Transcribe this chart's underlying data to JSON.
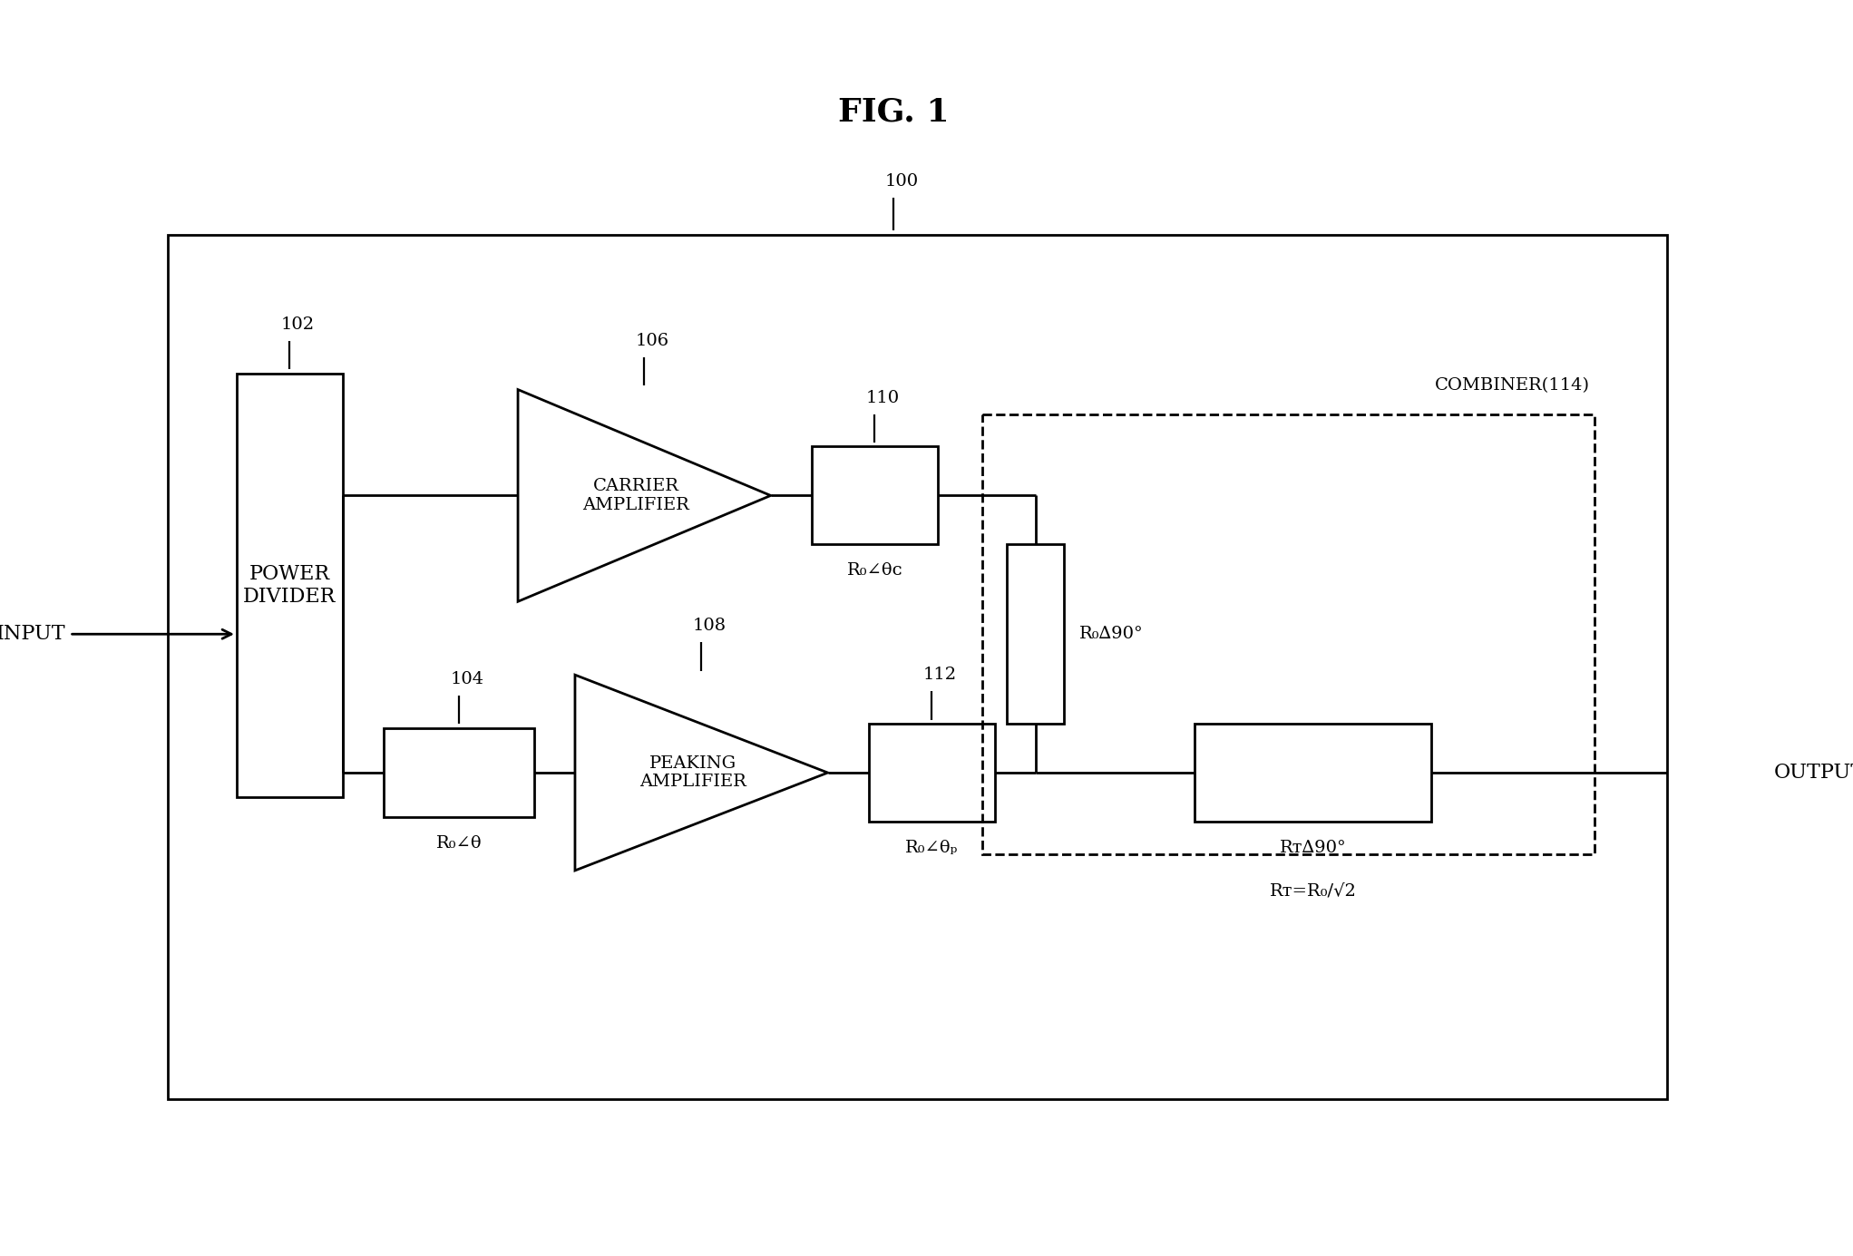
{
  "title": "FIG. 1",
  "title_fontsize": 26,
  "title_fontweight": "bold",
  "bg_color": "#ffffff",
  "line_color": "#000000",
  "linewidth": 2.0,
  "label_100": "100",
  "label_102": "102",
  "label_104": "104",
  "label_106": "106",
  "label_108": "108",
  "label_110": "110",
  "label_112": "112",
  "power_divider_label": "POWER\nDIVIDER",
  "carrier_amp_label": "CARRIER\nAMPLIFIER",
  "peaking_amp_label": "PEAKING\nAMPLIFIER",
  "combiner_label": "COMBINER(114)",
  "input_label": "INPUT",
  "output_label": "OUTPUT",
  "r0_theta_c_label": "R₀∠θᴄ",
  "r0_theta_label": "R₀∠θ",
  "r0_theta_p_label": "R₀∠θₚ",
  "r0_90_label": "R₀∆90°",
  "rt_90_label": "Rᴛ∆90°",
  "rt_eq_label": "Rᴛ=R₀/√2",
  "font_size_main": 16,
  "font_size_small": 14,
  "font_size_numbers": 14
}
